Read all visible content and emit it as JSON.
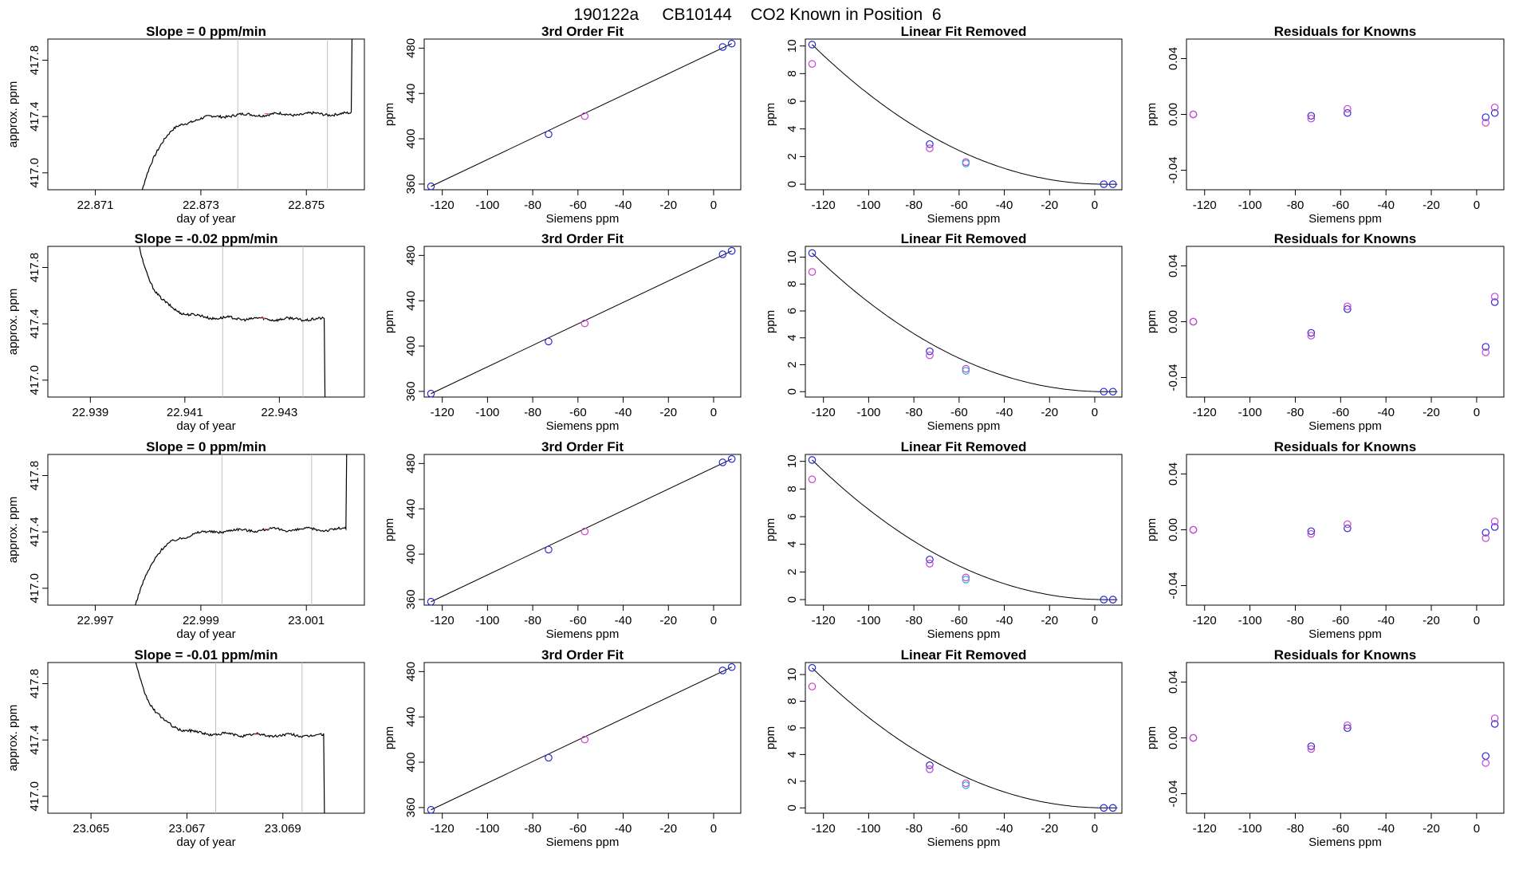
{
  "figure_title": "190122a     CB10144    CO2 Known in Position  6",
  "colors": {
    "trace": "#000000",
    "marker_line": "#bfbfbf",
    "marker_red": "#ff6060",
    "pt_blue": "#2a2ad8",
    "pt_magenta": "#cc44cc",
    "pt_cyan": "#33aadd",
    "pt_purple": "#7a3ad0"
  },
  "chart_data": [
    {
      "type": "line",
      "row": 0,
      "col": 0,
      "title": "Slope =  0  ppm/min",
      "xlabel": "day of year",
      "ylabel": "approx. ppm",
      "xlim": [
        22.8701,
        22.8761
      ],
      "ylim": [
        416.88,
        417.95
      ],
      "xticks": [
        22.871,
        22.873,
        22.875
      ],
      "xtick_labels": [
        "22.871",
        "22.873",
        "22.875"
      ],
      "yticks": [
        417.0,
        417.4,
        417.8
      ],
      "ytick_labels": [
        "417.0",
        "417.4",
        "417.8"
      ],
      "vlines": [
        22.8737,
        22.8754
      ],
      "trace": {
        "shape": "up",
        "start": 22.87168,
        "end": 22.87585,
        "plateau": 417.42
      },
      "red_mark": [
        22.87425,
        417.42
      ]
    },
    {
      "type": "line",
      "row": 1,
      "col": 0,
      "title": "Slope =  -0.02  ppm/min",
      "xlabel": "day of year",
      "ylabel": "approx. ppm",
      "xlim": [
        22.9381,
        22.9448
      ],
      "ylim": [
        416.88,
        417.95
      ],
      "xticks": [
        22.939,
        22.941,
        22.943
      ],
      "xtick_labels": [
        "22.939",
        "22.941",
        "22.943"
      ],
      "yticks": [
        417.0,
        417.4,
        417.8
      ],
      "ytick_labels": [
        "417.0",
        "417.4",
        "417.8"
      ],
      "vlines": [
        22.9418,
        22.9435
      ],
      "trace": {
        "shape": "down",
        "start": 22.9398,
        "end": 22.94395,
        "plateau": 417.43
      },
      "red_mark": [
        22.94265,
        417.44
      ]
    },
    {
      "type": "line",
      "row": 2,
      "col": 0,
      "title": "Slope =  0  ppm/min",
      "xlabel": "day of year",
      "ylabel": "approx. ppm",
      "xlim": [
        22.9961,
        23.0021
      ],
      "ylim": [
        416.88,
        417.95
      ],
      "xticks": [
        22.997,
        22.999,
        23.001
      ],
      "xtick_labels": [
        "22.997",
        "22.999",
        "23.001"
      ],
      "yticks": [
        417.0,
        417.4,
        417.8
      ],
      "ytick_labels": [
        "417.0",
        "417.4",
        "417.8"
      ],
      "vlines": [
        22.9994,
        23.0011
      ],
      "trace": {
        "shape": "up",
        "start": 22.99755,
        "end": 23.00175,
        "plateau": 417.42
      },
      "red_mark": [
        23.00025,
        417.42
      ]
    },
    {
      "type": "line",
      "row": 3,
      "col": 0,
      "title": "Slope =  -0.01  ppm/min",
      "xlabel": "day of year",
      "ylabel": "approx. ppm",
      "xlim": [
        23.0641,
        23.0707
      ],
      "ylim": [
        416.88,
        417.95
      ],
      "xticks": [
        23.065,
        23.067,
        23.069
      ],
      "xtick_labels": [
        "23.065",
        "23.067",
        "23.069"
      ],
      "yticks": [
        417.0,
        417.4,
        417.8
      ],
      "ytick_labels": [
        "417.0",
        "417.4",
        "417.8"
      ],
      "vlines": [
        23.0676,
        23.0694
      ],
      "trace": {
        "shape": "down",
        "start": 23.0657,
        "end": 23.06985,
        "plateau": 417.43
      },
      "red_mark": [
        23.06845,
        417.44
      ]
    },
    {
      "type": "scatter",
      "row": 0,
      "col": 1,
      "title": "3rd Order Fit",
      "xlabel": "Siemens ppm",
      "ylabel": "ppm",
      "xlim": [
        -128,
        12
      ],
      "ylim": [
        355,
        488
      ],
      "xticks": [
        -120,
        -100,
        -80,
        -60,
        -40,
        -20,
        0
      ],
      "yticks": [
        360,
        400,
        440,
        480
      ],
      "fit_line": [
        [
          -125,
          358
        ],
        [
          8,
          484
        ]
      ],
      "points": [
        [
          -125,
          358,
          "blue"
        ],
        [
          -73,
          404,
          "blue"
        ],
        [
          -57,
          420,
          "magenta"
        ],
        [
          4,
          481,
          "blue"
        ],
        [
          8,
          484,
          "blue"
        ]
      ]
    },
    {
      "type": "scatter",
      "row": 1,
      "col": 1,
      "title": "3rd Order Fit",
      "xlabel": "Siemens ppm",
      "ylabel": "ppm",
      "xlim": [
        -128,
        12
      ],
      "ylim": [
        355,
        488
      ],
      "xticks": [
        -120,
        -100,
        -80,
        -60,
        -40,
        -20,
        0
      ],
      "yticks": [
        360,
        400,
        440,
        480
      ],
      "fit_line": [
        [
          -125,
          358
        ],
        [
          8,
          484
        ]
      ],
      "points": [
        [
          -125,
          358,
          "blue"
        ],
        [
          -73,
          404,
          "blue"
        ],
        [
          -57,
          420,
          "magenta"
        ],
        [
          4,
          481,
          "blue"
        ],
        [
          8,
          484,
          "blue"
        ]
      ]
    },
    {
      "type": "scatter",
      "row": 2,
      "col": 1,
      "title": "3rd Order Fit",
      "xlabel": "Siemens ppm",
      "ylabel": "ppm",
      "xlim": [
        -128,
        12
      ],
      "ylim": [
        355,
        488
      ],
      "xticks": [
        -120,
        -100,
        -80,
        -60,
        -40,
        -20,
        0
      ],
      "yticks": [
        360,
        400,
        440,
        480
      ],
      "fit_line": [
        [
          -125,
          358
        ],
        [
          8,
          484
        ]
      ],
      "points": [
        [
          -125,
          358,
          "blue"
        ],
        [
          -73,
          404,
          "blue"
        ],
        [
          -57,
          420,
          "magenta"
        ],
        [
          4,
          481,
          "blue"
        ],
        [
          8,
          484,
          "blue"
        ]
      ]
    },
    {
      "type": "scatter",
      "row": 3,
      "col": 1,
      "title": "3rd Order Fit",
      "xlabel": "Siemens ppm",
      "ylabel": "ppm",
      "xlim": [
        -128,
        12
      ],
      "ylim": [
        355,
        488
      ],
      "xticks": [
        -120,
        -100,
        -80,
        -60,
        -40,
        -20,
        0
      ],
      "yticks": [
        360,
        400,
        440,
        480
      ],
      "fit_line": [
        [
          -125,
          358
        ],
        [
          8,
          484
        ]
      ],
      "points": [
        [
          -125,
          358,
          "blue"
        ],
        [
          -73,
          404,
          "blue"
        ],
        [
          -57,
          420,
          "magenta"
        ],
        [
          4,
          481,
          "blue"
        ],
        [
          8,
          484,
          "blue"
        ]
      ]
    },
    {
      "type": "scatter",
      "row": 0,
      "col": 2,
      "title": "Linear Fit Removed",
      "xlabel": "Siemens ppm",
      "ylabel": "ppm",
      "xlim": [
        -128,
        12
      ],
      "ylim": [
        -0.4,
        10.5
      ],
      "xticks": [
        -120,
        -100,
        -80,
        -60,
        -40,
        -20,
        0
      ],
      "yticks": [
        0,
        2,
        4,
        6,
        8,
        10
      ],
      "curve": {
        "a": -125,
        "b": 5,
        "peak": 10.1
      },
      "points": [
        [
          -125,
          10.1,
          "blue"
        ],
        [
          -125,
          8.7,
          "magenta"
        ],
        [
          -73,
          2.9,
          "blue"
        ],
        [
          -73,
          2.6,
          "magenta"
        ],
        [
          -57,
          1.6,
          "magenta"
        ],
        [
          -57,
          1.5,
          "cyan"
        ],
        [
          4,
          0.0,
          "blue"
        ],
        [
          8,
          0.0,
          "blue"
        ]
      ]
    },
    {
      "type": "scatter",
      "row": 1,
      "col": 2,
      "title": "Linear Fit Removed",
      "xlabel": "Siemens ppm",
      "ylabel": "ppm",
      "xlim": [
        -128,
        12
      ],
      "ylim": [
        -0.4,
        10.8
      ],
      "xticks": [
        -120,
        -100,
        -80,
        -60,
        -40,
        -20,
        0
      ],
      "yticks": [
        0,
        2,
        4,
        6,
        8,
        10
      ],
      "curve": {
        "a": -125,
        "b": 5,
        "peak": 10.3
      },
      "points": [
        [
          -125,
          10.3,
          "blue"
        ],
        [
          -125,
          8.9,
          "magenta"
        ],
        [
          -73,
          3.0,
          "blue"
        ],
        [
          -73,
          2.7,
          "magenta"
        ],
        [
          -57,
          1.7,
          "magenta"
        ],
        [
          -57,
          1.55,
          "cyan"
        ],
        [
          4,
          0.0,
          "blue"
        ],
        [
          8,
          0.0,
          "blue"
        ]
      ]
    },
    {
      "type": "scatter",
      "row": 2,
      "col": 2,
      "title": "Linear Fit Removed",
      "xlabel": "Siemens ppm",
      "ylabel": "ppm",
      "xlim": [
        -128,
        12
      ],
      "ylim": [
        -0.4,
        10.5
      ],
      "xticks": [
        -120,
        -100,
        -80,
        -60,
        -40,
        -20,
        0
      ],
      "yticks": [
        0,
        2,
        4,
        6,
        8,
        10
      ],
      "curve": {
        "a": -125,
        "b": 5,
        "peak": 10.1
      },
      "points": [
        [
          -125,
          10.1,
          "blue"
        ],
        [
          -125,
          8.7,
          "magenta"
        ],
        [
          -73,
          2.9,
          "blue"
        ],
        [
          -73,
          2.6,
          "magenta"
        ],
        [
          -57,
          1.6,
          "magenta"
        ],
        [
          -57,
          1.45,
          "cyan"
        ],
        [
          4,
          0.0,
          "blue"
        ],
        [
          8,
          0.0,
          "blue"
        ]
      ]
    },
    {
      "type": "scatter",
      "row": 3,
      "col": 2,
      "title": "Linear Fit Removed",
      "xlabel": "Siemens ppm",
      "ylabel": "ppm",
      "xlim": [
        -128,
        12
      ],
      "ylim": [
        -0.4,
        10.9
      ],
      "xticks": [
        -120,
        -100,
        -80,
        -60,
        -40,
        -20,
        0
      ],
      "yticks": [
        0,
        2,
        4,
        6,
        8,
        10
      ],
      "curve": {
        "a": -125,
        "b": 5,
        "peak": 10.5
      },
      "points": [
        [
          -125,
          10.5,
          "blue"
        ],
        [
          -125,
          9.1,
          "magenta"
        ],
        [
          -73,
          3.2,
          "blue"
        ],
        [
          -73,
          2.9,
          "magenta"
        ],
        [
          -57,
          1.85,
          "magenta"
        ],
        [
          -57,
          1.7,
          "cyan"
        ],
        [
          4,
          0.0,
          "blue"
        ],
        [
          8,
          0.0,
          "blue"
        ]
      ]
    },
    {
      "type": "scatter",
      "row": 0,
      "col": 3,
      "title": "Residuals for Knowns",
      "xlabel": "Siemens ppm",
      "ylabel": "ppm",
      "xlim": [
        -128,
        12
      ],
      "ylim": [
        -0.054,
        0.054
      ],
      "xticks": [
        -120,
        -100,
        -80,
        -60,
        -40,
        -20,
        0
      ],
      "yticks": [
        -0.04,
        0.0,
        0.04
      ],
      "ytick_labels": [
        "-0.04",
        "0.00",
        "0.04"
      ],
      "points": [
        [
          -125,
          0.0,
          "blue"
        ],
        [
          -125,
          0.0,
          "magenta"
        ],
        [
          -73,
          -0.001,
          "blue"
        ],
        [
          -73,
          -0.003,
          "magenta"
        ],
        [
          -57,
          0.001,
          "blue"
        ],
        [
          -57,
          0.004,
          "magenta"
        ],
        [
          4,
          -0.002,
          "blue"
        ],
        [
          4,
          -0.006,
          "magenta"
        ],
        [
          8,
          0.001,
          "blue"
        ],
        [
          8,
          0.005,
          "magenta"
        ]
      ]
    },
    {
      "type": "scatter",
      "row": 1,
      "col": 3,
      "title": "Residuals for Knowns",
      "xlabel": "Siemens ppm",
      "ylabel": "ppm",
      "xlim": [
        -128,
        12
      ],
      "ylim": [
        -0.054,
        0.054
      ],
      "xticks": [
        -120,
        -100,
        -80,
        -60,
        -40,
        -20,
        0
      ],
      "yticks": [
        -0.04,
        0.0,
        0.04
      ],
      "ytick_labels": [
        "-0.04",
        "0.00",
        "0.04"
      ],
      "points": [
        [
          -125,
          0.0,
          "blue"
        ],
        [
          -125,
          0.0,
          "magenta"
        ],
        [
          -73,
          -0.008,
          "blue"
        ],
        [
          -73,
          -0.01,
          "magenta"
        ],
        [
          -57,
          0.009,
          "blue"
        ],
        [
          -57,
          0.011,
          "magenta"
        ],
        [
          4,
          -0.018,
          "blue"
        ],
        [
          4,
          -0.022,
          "magenta"
        ],
        [
          8,
          0.014,
          "blue"
        ],
        [
          8,
          0.018,
          "magenta"
        ]
      ]
    },
    {
      "type": "scatter",
      "row": 2,
      "col": 3,
      "title": "Residuals for Knowns",
      "xlabel": "Siemens ppm",
      "ylabel": "ppm",
      "xlim": [
        -128,
        12
      ],
      "ylim": [
        -0.054,
        0.054
      ],
      "xticks": [
        -120,
        -100,
        -80,
        -60,
        -40,
        -20,
        0
      ],
      "yticks": [
        -0.04,
        0.0,
        0.04
      ],
      "ytick_labels": [
        "-0.04",
        "0.00",
        "0.04"
      ],
      "points": [
        [
          -125,
          0.0,
          "blue"
        ],
        [
          -125,
          0.0,
          "magenta"
        ],
        [
          -73,
          -0.001,
          "blue"
        ],
        [
          -73,
          -0.003,
          "magenta"
        ],
        [
          -57,
          0.001,
          "blue"
        ],
        [
          -57,
          0.004,
          "magenta"
        ],
        [
          4,
          -0.002,
          "blue"
        ],
        [
          4,
          -0.006,
          "magenta"
        ],
        [
          8,
          0.002,
          "blue"
        ],
        [
          8,
          0.006,
          "magenta"
        ]
      ]
    },
    {
      "type": "scatter",
      "row": 3,
      "col": 3,
      "title": "Residuals for Knowns",
      "xlabel": "Siemens ppm",
      "ylabel": "ppm",
      "xlim": [
        -128,
        12
      ],
      "ylim": [
        -0.054,
        0.054
      ],
      "xticks": [
        -120,
        -100,
        -80,
        -60,
        -40,
        -20,
        0
      ],
      "yticks": [
        -0.04,
        0.0,
        0.04
      ],
      "ytick_labels": [
        "-0.04",
        "0.00",
        "0.04"
      ],
      "points": [
        [
          -125,
          0.0,
          "blue"
        ],
        [
          -125,
          0.0,
          "magenta"
        ],
        [
          -73,
          -0.006,
          "blue"
        ],
        [
          -73,
          -0.008,
          "magenta"
        ],
        [
          -57,
          0.007,
          "blue"
        ],
        [
          -57,
          0.009,
          "magenta"
        ],
        [
          4,
          -0.013,
          "blue"
        ],
        [
          4,
          -0.018,
          "magenta"
        ],
        [
          8,
          0.01,
          "blue"
        ],
        [
          8,
          0.014,
          "magenta"
        ]
      ]
    }
  ]
}
